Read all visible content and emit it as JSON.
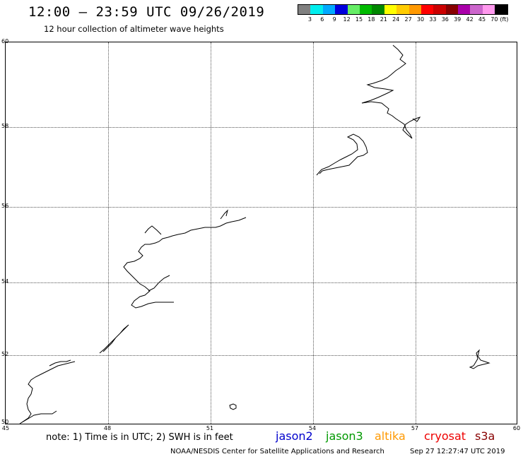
{
  "title": "12:00 – 23:59 UTC 09/26/2019",
  "subtitle": "12 hour collection of altimeter wave heights",
  "color_scale": {
    "unit": "(ft)",
    "colors": [
      "#808080",
      "#00eeee",
      "#00aaff",
      "#0000dd",
      "#66ee66",
      "#00bb00",
      "#008800",
      "#ffff00",
      "#ffcc00",
      "#ff9900",
      "#ff0000",
      "#cc0000",
      "#880000",
      "#aa00aa",
      "#cc66cc",
      "#ff99ee",
      "#000000"
    ],
    "labels": [
      "3",
      "6",
      "9",
      "12",
      "15",
      "18",
      "21",
      "24",
      "27",
      "30",
      "33",
      "36",
      "39",
      "42",
      "45",
      "70"
    ]
  },
  "map": {
    "lat_labels": [
      "60",
      "58",
      "56",
      "54",
      "52",
      "50"
    ],
    "lon_labels": [
      "45",
      "48",
      "51",
      "54",
      "57",
      "60"
    ]
  },
  "note": "note: 1) Time is in UTC; 2) SWH is in feet",
  "legend": [
    {
      "name": "jason2",
      "color": "#0000cc"
    },
    {
      "name": "jason3",
      "color": "#009900"
    },
    {
      "name": "altika",
      "color": "#ff9900"
    },
    {
      "name": "cryosat",
      "color": "#ee0000"
    },
    {
      "name": "s3a",
      "color": "#880000"
    }
  ],
  "credit": "NOAA/NESDIS Center for Satellite Applications and Research",
  "timestamp": "Sep 27 12:27:47 UTC 2019"
}
